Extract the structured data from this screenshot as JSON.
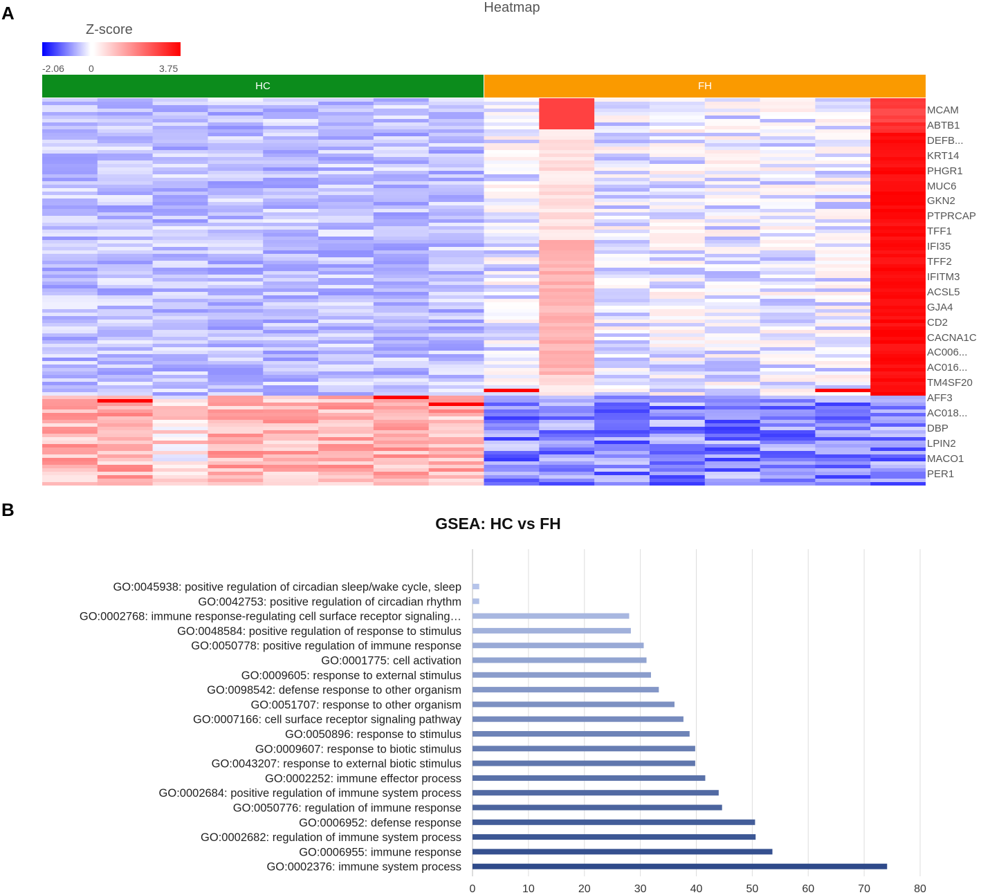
{
  "panel_a_label": "A",
  "panel_b_label": "B",
  "colors": {
    "hc": "#0c8c1c",
    "fh": "#fa9a00",
    "bar_dark": "#2e4a8a",
    "bar_light": "#b6c4ea"
  },
  "chart_data": [
    {
      "type": "heatmap",
      "title": "Heatmap",
      "legend": {
        "title": "Z-score",
        "min": "-2.06",
        "mid": "0",
        "max": "3.75"
      },
      "groups": [
        {
          "name": "HC",
          "columns": 8
        },
        {
          "name": "FH",
          "columns": 8
        }
      ],
      "row_labels": [
        "MCAM",
        "ABTB1",
        "DEFB...",
        "KRT14",
        "PHGR1",
        "MUC6",
        "GKN2",
        "PTPRCAP",
        "TFF1",
        "IFI35",
        "TFF2",
        "IFITM3",
        "ACSL5",
        "GJA4",
        "CD2",
        "CACNA1C",
        "AC006...",
        "AC016...",
        "TM4SF20",
        "AFF3",
        "AC018...",
        "DBP",
        "LPIN2",
        "MACO1",
        "PER1"
      ],
      "up_in_fh_rows": 19,
      "down_in_fh_rows": 6
    },
    {
      "type": "bar",
      "orientation": "horizontal",
      "title": "GSEA: HC vs FH",
      "xlim": [
        0,
        80
      ],
      "xticks": [
        0,
        10,
        20,
        30,
        40,
        50,
        60,
        70,
        80
      ],
      "categories": [
        "GO:0045938: positive regulation of circadian sleep/wake cycle, sleep",
        "GO:0042753: positive regulation of circadian rhythm",
        "GO:0002768: immune response-regulating cell surface receptor signaling…",
        "GO:0048584: positive regulation of response to stimulus",
        "GO:0050778: positive regulation of immune response",
        "GO:0001775: cell activation",
        "GO:0009605: response to external stimulus",
        "GO:0098542: defense response to other organism",
        "GO:0051707: response to other organism",
        "GO:0007166: cell surface receptor signaling pathway",
        "GO:0050896: response to stimulus",
        "GO:0009607: response to biotic stimulus",
        "GO:0043207: response to external biotic stimulus",
        "GO:0002252: immune effector process",
        "GO:0002684: positive regulation of immune system process",
        "GO:0050776: regulation of immune response",
        "GO:0006952: defense response",
        "GO:0002682: regulation of immune system process",
        "GO:0006955: immune response",
        "GO:0002376: immune system process"
      ],
      "values": [
        1.2,
        1.2,
        28,
        28.3,
        30.6,
        31.1,
        31.9,
        33.3,
        36.1,
        37.7,
        38.8,
        39.8,
        39.8,
        41.6,
        44.0,
        44.6,
        50.5,
        50.6,
        53.6,
        74.1
      ]
    }
  ]
}
